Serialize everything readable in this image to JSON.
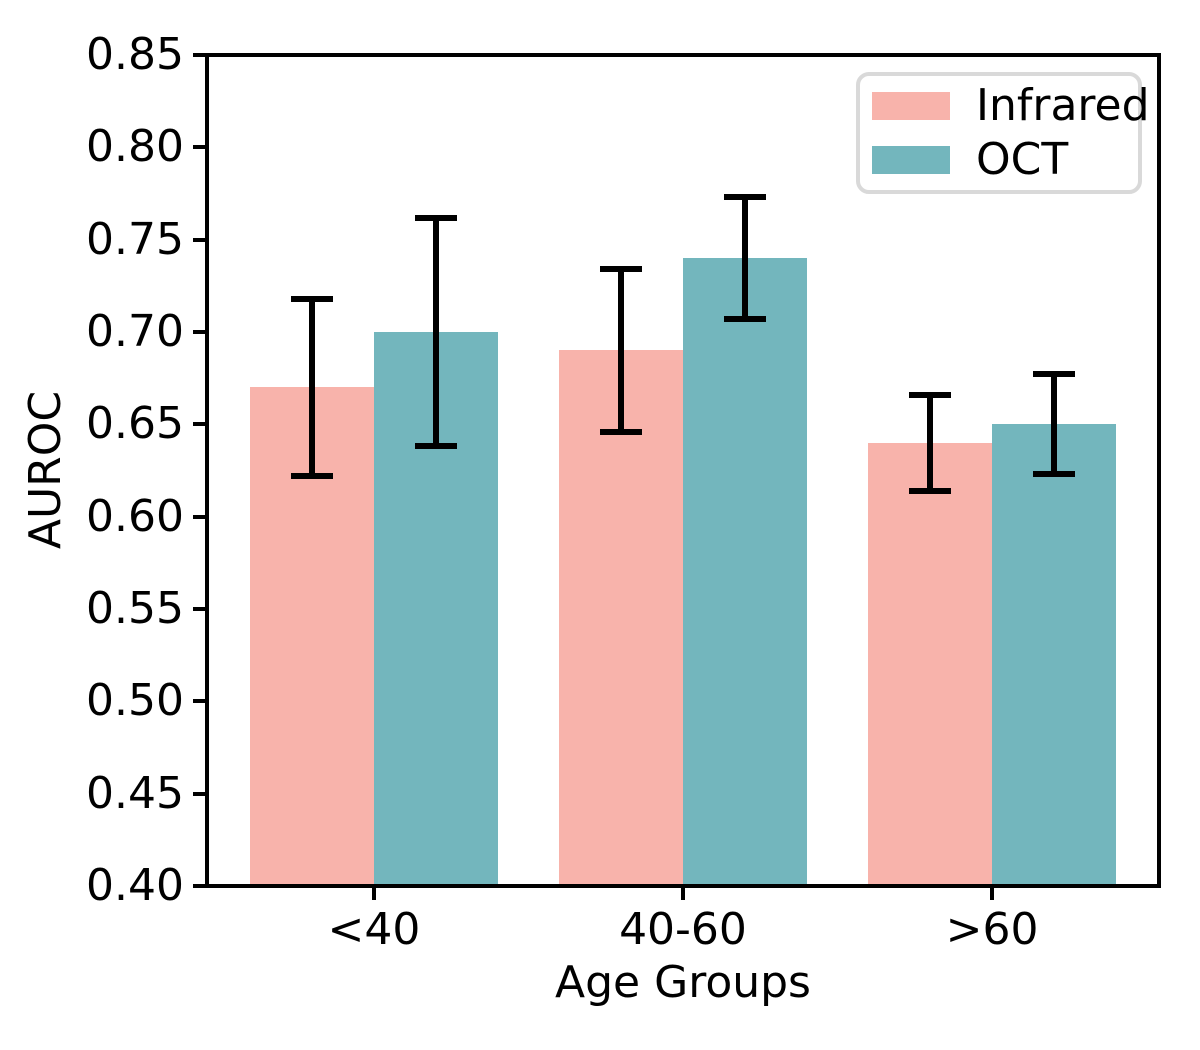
{
  "chart_data": {
    "type": "bar",
    "title": "",
    "xlabel": "Age Groups",
    "ylabel": "AUROC",
    "categories": [
      "<40",
      "40-60",
      ">60"
    ],
    "series": [
      {
        "name": "Infrared",
        "color": "#f8b3ab",
        "values": [
          0.67,
          0.69,
          0.64
        ],
        "error_low": [
          0.622,
          0.646,
          0.614
        ],
        "error_high": [
          0.718,
          0.734,
          0.666
        ]
      },
      {
        "name": "OCT",
        "color": "#73b6bd",
        "values": [
          0.7,
          0.74,
          0.65
        ],
        "error_low": [
          0.638,
          0.707,
          0.623
        ],
        "error_high": [
          0.762,
          0.773,
          0.677
        ]
      }
    ],
    "ylim": [
      0.4,
      0.85
    ],
    "yticks": [
      0.4,
      0.45,
      0.5,
      0.55,
      0.6,
      0.65,
      0.7,
      0.75,
      0.8,
      0.85
    ],
    "ytick_labels": [
      "0.40",
      "0.45",
      "0.50",
      "0.55",
      "0.60",
      "0.65",
      "0.70",
      "0.75",
      "0.80",
      "0.85"
    ],
    "xlim": [
      -0.54,
      2.54
    ],
    "bar_width": 0.4,
    "grid": false,
    "legend": {
      "location": "upper right",
      "entries": [
        "Infrared",
        "OCT"
      ],
      "border_color": "#d9d9d9"
    },
    "errorbar_color": "#000000",
    "axis_color": "#000000",
    "background_color": "#ffffff"
  }
}
